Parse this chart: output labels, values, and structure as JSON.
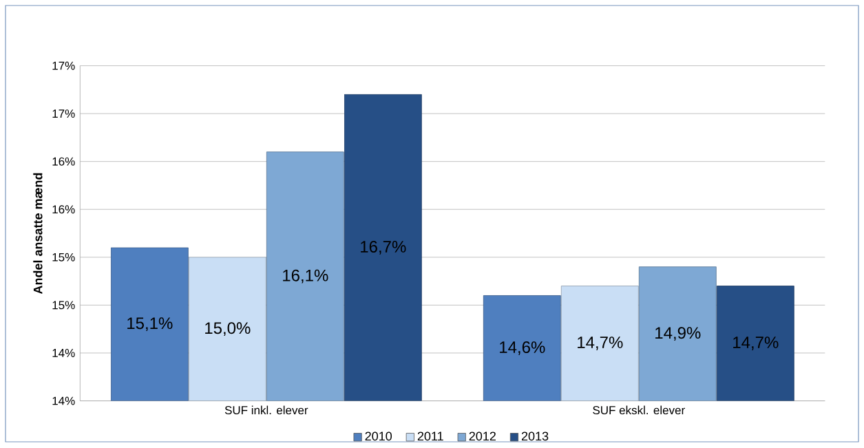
{
  "chart_data": {
    "type": "bar",
    "ylabel": "Andel ansatte mænd",
    "categories": [
      "SUF inkl. elever",
      "SUF ekskl. elever"
    ],
    "series": [
      {
        "name": "2010",
        "color": "#4f7fbf",
        "values": [
          15.1,
          14.6
        ],
        "value_labels": [
          "15,1%",
          "14,6%"
        ]
      },
      {
        "name": "2011",
        "color": "#c9def5",
        "values": [
          15.0,
          14.7
        ],
        "value_labels": [
          "15,0%",
          "14,7%"
        ]
      },
      {
        "name": "2012",
        "color": "#7ea8d4",
        "values": [
          16.1,
          14.9
        ],
        "value_labels": [
          "16,1%",
          "14,9%"
        ]
      },
      {
        "name": "2013",
        "color": "#264f86",
        "values": [
          16.7,
          14.7
        ],
        "value_labels": [
          "16,7%",
          "14,7%"
        ]
      }
    ],
    "ylim": [
      13.5,
      17.0
    ],
    "yticks": [
      {
        "value": 13.5,
        "label": "14%"
      },
      {
        "value": 14.0,
        "label": "14%"
      },
      {
        "value": 14.5,
        "label": "15%"
      },
      {
        "value": 15.0,
        "label": "15%"
      },
      {
        "value": 15.5,
        "label": "16%"
      },
      {
        "value": 16.0,
        "label": "16%"
      },
      {
        "value": 16.5,
        "label": "17%"
      },
      {
        "value": 17.0,
        "label": "17%"
      }
    ],
    "grid": "y",
    "legend": "bottom"
  }
}
